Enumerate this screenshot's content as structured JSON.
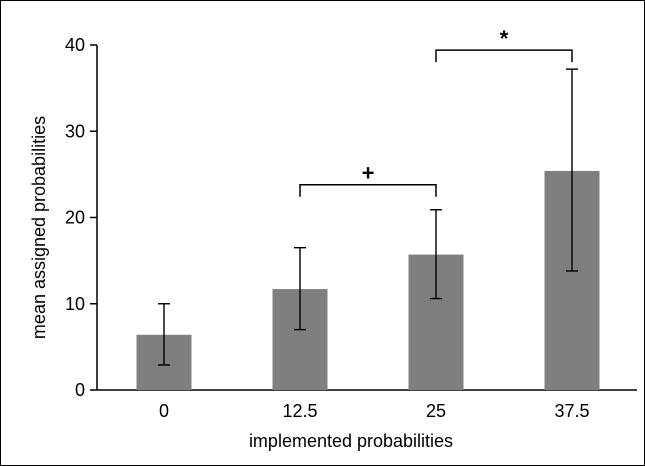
{
  "chart_data": {
    "type": "bar",
    "title": "",
    "xlabel": "implemented probabilities",
    "ylabel": "mean assigned probabilities",
    "categories": [
      "0",
      "12.5",
      "25",
      "37.5"
    ],
    "values": [
      6.4,
      11.7,
      15.7,
      25.4
    ],
    "error_low": [
      2.9,
      7.0,
      10.6,
      13.8
    ],
    "error_high": [
      10.0,
      16.5,
      20.9,
      37.2
    ],
    "ylim": [
      0,
      40
    ],
    "yticks": [
      0,
      10,
      20,
      30,
      40
    ],
    "ytick_labels": [
      "0",
      "10",
      "20",
      "30",
      "40"
    ],
    "grid": false,
    "bar_color": "#7f7f7f",
    "significance": [
      {
        "from": 1,
        "to": 2,
        "level": 23.8,
        "label": "+"
      },
      {
        "from": 2,
        "to": 3,
        "level": 39.4,
        "label": "*"
      }
    ]
  }
}
